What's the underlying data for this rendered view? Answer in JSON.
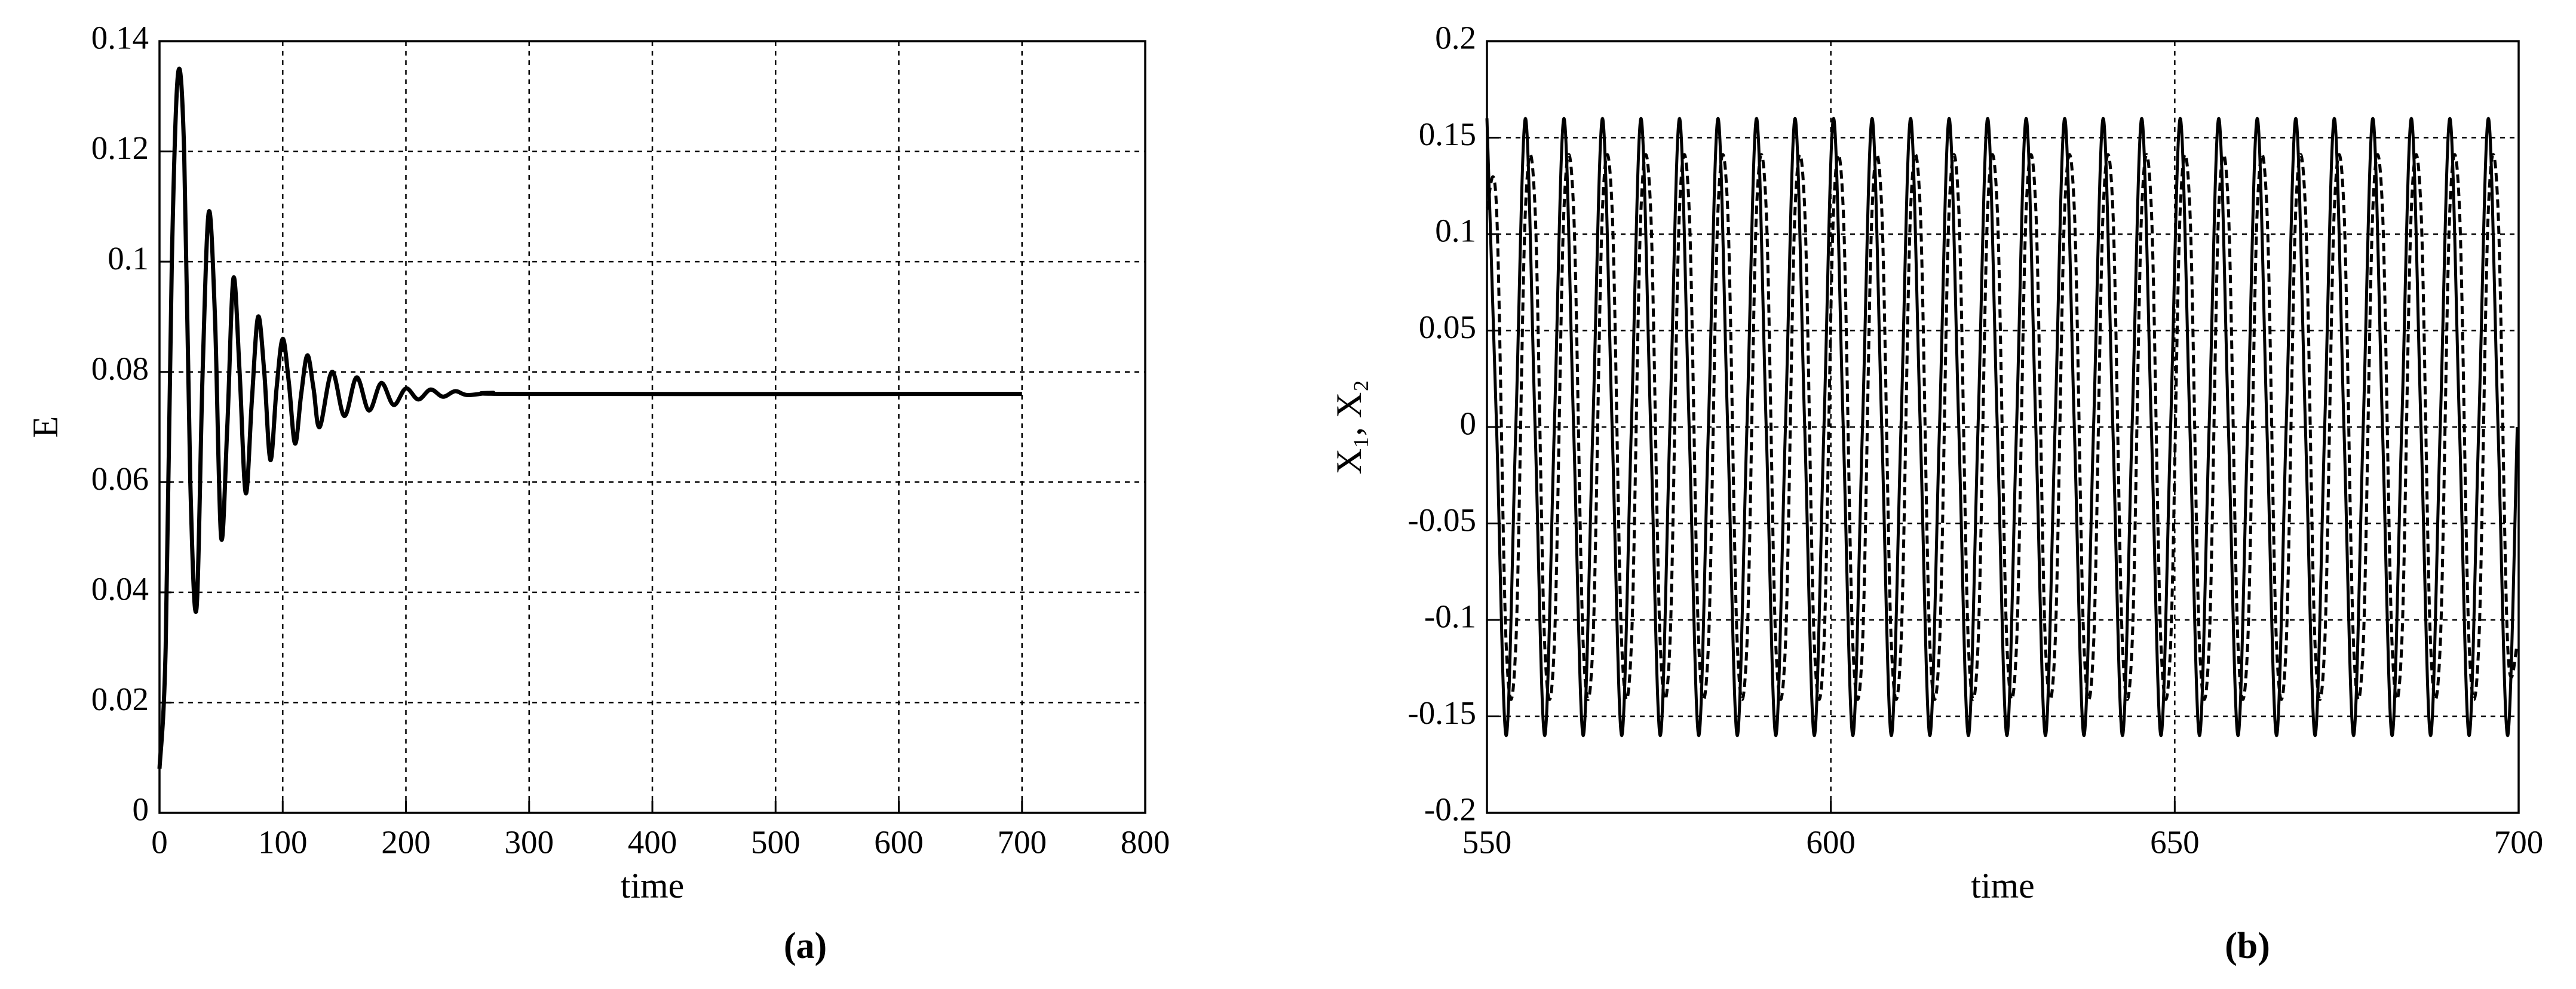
{
  "chart_data": [
    {
      "type": "line",
      "panel_label": "(a)",
      "xlabel": "time",
      "ylabel": "E",
      "color": "#000000",
      "line_style": "solid",
      "grid": true,
      "xlim": [
        0,
        800
      ],
      "xticks": [
        0,
        100,
        200,
        300,
        400,
        500,
        600,
        700,
        800
      ],
      "ylim": [
        0,
        0.14
      ],
      "yticks": [
        0,
        0.02,
        0.04,
        0.06,
        0.08,
        0.1,
        0.12,
        0.14
      ],
      "x": [
        0,
        5,
        10,
        15,
        20,
        25,
        30,
        35,
        40,
        45,
        50,
        55,
        60,
        65,
        70,
        75,
        80,
        85,
        90,
        95,
        100,
        105,
        110,
        115,
        120,
        125,
        130,
        140,
        150,
        160,
        170,
        180,
        190,
        200,
        210,
        220,
        230,
        240,
        250,
        270,
        300,
        700
      ],
      "values": [
        0.008,
        0.03,
        0.1,
        0.134,
        0.12,
        0.06,
        0.037,
        0.08,
        0.109,
        0.09,
        0.05,
        0.07,
        0.097,
        0.08,
        0.058,
        0.075,
        0.09,
        0.08,
        0.064,
        0.077,
        0.086,
        0.078,
        0.067,
        0.076,
        0.083,
        0.077,
        0.07,
        0.08,
        0.072,
        0.079,
        0.073,
        0.078,
        0.074,
        0.077,
        0.075,
        0.0768,
        0.0755,
        0.0765,
        0.0758,
        0.0762,
        0.076,
        0.076
      ]
    },
    {
      "type": "line",
      "panel_label": "(b)",
      "xlabel": "time",
      "ylabel": "X₁, X₂",
      "grid": true,
      "xlim": [
        550,
        700
      ],
      "xticks": [
        550,
        600,
        650,
        700
      ],
      "ylim": [
        -0.2,
        0.2
      ],
      "yticks": [
        -0.2,
        -0.15,
        -0.1,
        -0.05,
        0,
        0.05,
        0.1,
        0.15,
        0.2
      ],
      "x": [
        550,
        551.4,
        552.8,
        554.2,
        555.6,
        557,
        558.4,
        559.8,
        561.2,
        562.6,
        564,
        565.4,
        566.8,
        568.2,
        569.6,
        571,
        572.4,
        573.8,
        575.2,
        576.6,
        578,
        579.4,
        580.8,
        582.2,
        583.6,
        585,
        586.4,
        587.8,
        589.2,
        590.6,
        592,
        593.4,
        594.8,
        596.2,
        597.6,
        599,
        600.4,
        601.8,
        603.2,
        604.6,
        606,
        607.4,
        608.8,
        610.2,
        611.6,
        613,
        614.4,
        615.8,
        617.2,
        618.6,
        620,
        621.4,
        622.8,
        624.2,
        625.6,
        627,
        628.4,
        629.8,
        631.2,
        632.6,
        634,
        635.4,
        636.8,
        638.2,
        639.6,
        641,
        642.4,
        643.8,
        645.2,
        646.6,
        648,
        649.4,
        650.8,
        652.2,
        653.6,
        655,
        656.4,
        657.8,
        659.2,
        660.6,
        662,
        663.4,
        664.8,
        666.2,
        667.6,
        669,
        670.4,
        671.8,
        673.2,
        674.6,
        676,
        677.4,
        678.8,
        680.2,
        681.6,
        683,
        684.4,
        685.8,
        687.2,
        688.6,
        690,
        691.4,
        692.8,
        694.2,
        695.6,
        697,
        698.4,
        699.8
      ],
      "series": [
        {
          "color": "#000000",
          "line_style": "solid",
          "values": [
            0.16,
            0,
            -0.16,
            0,
            0.16,
            0,
            -0.16,
            0,
            0.16,
            0,
            -0.16,
            0,
            0.16,
            0,
            -0.16,
            0,
            0.16,
            0,
            -0.16,
            0,
            0.16,
            0,
            -0.16,
            0,
            0.16,
            0,
            -0.16,
            0,
            0.16,
            0,
            -0.16,
            0,
            0.16,
            0,
            -0.16,
            0,
            0.16,
            0,
            -0.16,
            0,
            0.16,
            0,
            -0.16,
            0,
            0.16,
            0,
            -0.16,
            0,
            0.16,
            0,
            -0.16,
            0,
            0.16,
            0,
            -0.16,
            0,
            0.16,
            0,
            -0.16,
            0,
            0.16,
            0,
            -0.16,
            0,
            0.16,
            0,
            -0.16,
            0,
            0.16,
            0,
            -0.16,
            0,
            0.16,
            0,
            -0.16,
            0,
            0.16,
            0,
            -0.16,
            0,
            0.16,
            0,
            -0.16,
            0,
            0.16,
            0,
            -0.16,
            0,
            0.16,
            0,
            -0.16,
            0,
            0.16,
            0,
            -0.16,
            0,
            0.16,
            0,
            -0.16,
            0,
            0.16,
            0,
            -0.16,
            0,
            0.16,
            0,
            -0.16,
            0
          ]
        },
        {
          "color": "#000000",
          "line_style": "dashed",
          "values": [
            0.113,
            0.113,
            -0.113,
            -0.113,
            0.113,
            0.113,
            -0.113,
            -0.113,
            0.113,
            0.113,
            -0.113,
            -0.113,
            0.113,
            0.113,
            -0.113,
            -0.113,
            0.113,
            0.113,
            -0.113,
            -0.113,
            0.113,
            0.113,
            -0.113,
            -0.113,
            0.113,
            0.113,
            -0.113,
            -0.113,
            0.113,
            0.113,
            -0.113,
            -0.113,
            0.113,
            0.113,
            -0.113,
            -0.113,
            0.113,
            0.113,
            -0.113,
            -0.113,
            0.113,
            0.113,
            -0.113,
            -0.113,
            0.113,
            0.113,
            -0.113,
            -0.113,
            0.113,
            0.113,
            -0.113,
            -0.113,
            0.113,
            0.113,
            -0.113,
            -0.113,
            0.113,
            0.113,
            -0.113,
            -0.113,
            0.113,
            0.113,
            -0.113,
            -0.113,
            0.113,
            0.113,
            -0.113,
            -0.113,
            0.113,
            0.113,
            -0.113,
            -0.113,
            0.113,
            0.113,
            -0.113,
            -0.113,
            0.113,
            0.113,
            -0.113,
            -0.113,
            0.113,
            0.113,
            -0.113,
            -0.113,
            0.113,
            0.113,
            -0.113,
            -0.113,
            0.113,
            0.113,
            -0.113,
            -0.113,
            0.113,
            0.113,
            -0.113,
            -0.113,
            0.113,
            0.113,
            -0.113,
            -0.113,
            0.113,
            0.113,
            -0.113,
            -0.113,
            0.113,
            0.113,
            -0.113,
            -0.113
          ]
        }
      ]
    }
  ]
}
